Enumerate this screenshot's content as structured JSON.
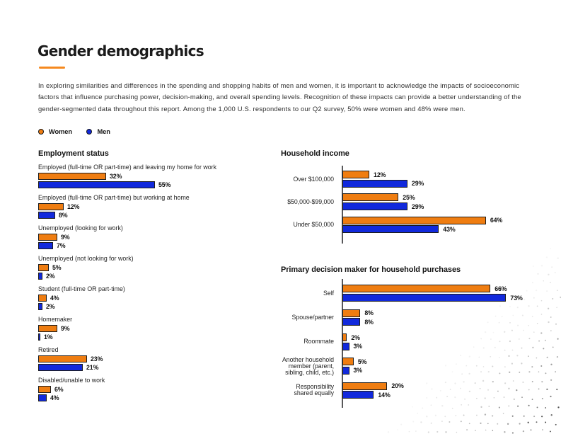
{
  "page": {
    "title": "Gender demographics"
  },
  "intro": {
    "lines": [
      "In exploring similarities and differences in the spending and shopping habits of men and women, it is important to acknowledge the impacts of socioeconomic",
      "factors that influence purchasing power, decision-making, and overall spending levels. Recognition of these impacts can provide a better understanding of the",
      "gender-segmented data throughout this report. Among the 1,000 U.S. respondents to our Q2 survey, 50% were women and 48% were men."
    ]
  },
  "legend": {
    "items": [
      {
        "label": "Women",
        "color": "#ef7d11"
      },
      {
        "label": "Men",
        "color": "#1129dc"
      }
    ]
  },
  "colors": {
    "women_bar": "#ef7d11",
    "men_bar": "#1129dc",
    "bar_border": "#1c1c1c",
    "axis": "#58585a",
    "accent_rule": "#f5891f"
  },
  "chart_data": [
    {
      "id": "employment",
      "type": "bar",
      "orientation": "horizontal",
      "title": "Employment status",
      "legend_position": "top",
      "grid": false,
      "value_suffix": "%",
      "categories": [
        "Employed (full-time OR part-time) and leaving my home for work",
        "Employed (full-time OR part-time) but working at home",
        "Unemployed (looking for work)",
        "Unemployed (not looking for work)",
        "Student (full-time OR part-time)",
        "Homemaker",
        "Retired",
        "Disabled/unable to work"
      ],
      "series": [
        {
          "name": "Women",
          "values": [
            32,
            12,
            9,
            5,
            4,
            9,
            23,
            6
          ]
        },
        {
          "name": "Men",
          "values": [
            55,
            8,
            7,
            2,
            2,
            1,
            21,
            4
          ]
        }
      ],
      "xlim": [
        0,
        100
      ]
    },
    {
      "id": "income",
      "type": "bar",
      "orientation": "horizontal",
      "title": "Household income",
      "grid": false,
      "value_suffix": "%",
      "categories": [
        "Over $100,000",
        "$50,000-$99,000",
        "Under $50,000"
      ],
      "categories_lines": [
        [
          "Over $100,000"
        ],
        [
          "$50,000-$99,000"
        ],
        [
          "Under $50,000"
        ]
      ],
      "series": [
        {
          "name": "Women",
          "values": [
            12,
            25,
            64
          ]
        },
        {
          "name": "Men",
          "values": [
            29,
            29,
            43
          ]
        }
      ],
      "xlim": [
        0,
        100
      ]
    },
    {
      "id": "decision",
      "type": "bar",
      "orientation": "horizontal",
      "title": "Primary decision maker for household purchases",
      "grid": false,
      "value_suffix": "%",
      "categories": [
        "Self",
        "Spouse/partner",
        "Roommate",
        "Another household member (parent, sibling, child, etc.)",
        "Responsibility shared equally"
      ],
      "categories_lines": [
        [
          "Self"
        ],
        [
          "Spouse/partner"
        ],
        [
          "Roommate"
        ],
        [
          "Another household",
          "member (parent,",
          "sibling, child, etc.)"
        ],
        [
          "Responsibility",
          "shared equally"
        ]
      ],
      "series": [
        {
          "name": "Women",
          "values": [
            66,
            8,
            2,
            5,
            20
          ]
        },
        {
          "name": "Men",
          "values": [
            73,
            8,
            3,
            3,
            14
          ]
        }
      ],
      "xlim": [
        0,
        100
      ]
    }
  ]
}
